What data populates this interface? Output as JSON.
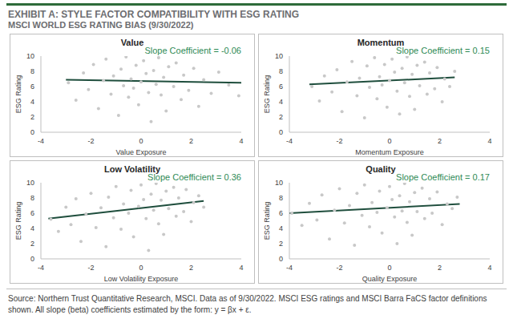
{
  "title": "EXHIBIT A: STYLE FACTOR COMPATIBILITY WITH ESG RATING",
  "subtitle": "MSCI WORLD ESG RATING BIAS (9/30/2022)",
  "source": "Source: Northern Trust Quantitative Research, MSCI. Data as of 9/30/2022. MSCI ESG ratings and MSCI Barra FaCS factor definitions shown. All slope (beta) coefficients estimated by the form: y = βx + ε.",
  "chart_data": [
    {
      "type": "scatter",
      "title": "Value",
      "annotation": "Slope Coefficient = -0.06",
      "x_label": "Value Exposure",
      "y_label": "ESG Rating",
      "xlim": [
        -4,
        4
      ],
      "xticks": [
        -4,
        -2,
        0,
        2,
        4
      ],
      "ylim": [
        0,
        10
      ],
      "yticks": [
        0,
        2,
        4,
        6,
        8,
        10
      ],
      "grid": false,
      "series": [
        {
          "type": "scatter",
          "color": "#c8c8c8",
          "x": [
            -2.9,
            -2.6,
            -2.3,
            -2.1,
            -1.9,
            -1.7,
            -1.5,
            -1.4,
            -1.2,
            -1.1,
            -0.9,
            -0.8,
            -0.7,
            -0.6,
            -0.5,
            -0.4,
            -0.3,
            -0.2,
            -0.1,
            0,
            0.1,
            0.2,
            0.3,
            0.4,
            0.5,
            0.6,
            0.7,
            0.8,
            0.9,
            1.0,
            1.1,
            1.3,
            1.4,
            1.6,
            1.7,
            1.9,
            2.1,
            2.3,
            2.5,
            2.8,
            3.1,
            3.5,
            3.9
          ],
          "values": [
            6.5,
            4.2,
            7.8,
            5.6,
            8.9,
            3.1,
            6.8,
            9.6,
            5.0,
            7.4,
            2.2,
            8.3,
            6.1,
            9.9,
            4.6,
            7.0,
            5.8,
            8.8,
            3.6,
            6.6,
            9.4,
            7.7,
            5.2,
            1.4,
            8.1,
            6.3,
            9.8,
            4.9,
            7.2,
            2.8,
            8.6,
            6.0,
            9.1,
            4.3,
            7.5,
            5.5,
            8.4,
            3.4,
            6.9,
            5.1,
            7.9,
            6.2,
            4.8
          ]
        },
        {
          "type": "line",
          "color": "#1f4e3d",
          "x": [
            -3,
            4
          ],
          "values": [
            6.9,
            6.5
          ]
        }
      ]
    },
    {
      "type": "scatter",
      "title": "Momentum",
      "annotation": "Slope Coefficient = 0.15",
      "x_label": "Momentum Exposure",
      "y_label": "ESG Rating",
      "xlim": [
        -4,
        4
      ],
      "xticks": [
        -4,
        -2,
        0,
        2,
        4
      ],
      "ylim": [
        0,
        10
      ],
      "yticks": [
        0,
        2,
        4,
        6,
        8,
        10
      ],
      "grid": false,
      "series": [
        {
          "type": "scatter",
          "color": "#c8c8c8",
          "x": [
            -3.1,
            -2.8,
            -2.6,
            -2.3,
            -2.1,
            -1.9,
            -1.7,
            -1.5,
            -1.3,
            -1.2,
            -1.0,
            -0.9,
            -0.8,
            -0.6,
            -0.5,
            -0.4,
            -0.3,
            -0.2,
            -0.1,
            0,
            0.1,
            0.2,
            0.3,
            0.4,
            0.5,
            0.6,
            0.7,
            0.8,
            0.9,
            1.0,
            1.1,
            1.2,
            1.4,
            1.5,
            1.6,
            1.8,
            1.9,
            2.1,
            2.2,
            2.4,
            2.6
          ],
          "values": [
            6.0,
            4.1,
            7.4,
            5.3,
            8.2,
            2.7,
            6.6,
            9.3,
            4.8,
            7.1,
            1.9,
            8.7,
            5.9,
            9.8,
            4.4,
            7.3,
            6.2,
            8.9,
            3.3,
            6.8,
            9.6,
            7.9,
            5.4,
            2.4,
            8.4,
            6.5,
            9.9,
            4.7,
            7.6,
            3.0,
            8.8,
            6.1,
            9.2,
            5.0,
            7.8,
            5.7,
            8.5,
            4.0,
            7.0,
            6.0,
            8.0
          ]
        },
        {
          "type": "line",
          "color": "#1f4e3d",
          "x": [
            -3.2,
            2.6
          ],
          "values": [
            6.3,
            7.2
          ]
        }
      ]
    },
    {
      "type": "scatter",
      "title": "Low Volatility",
      "annotation": "Slope Coefficient = 0.36",
      "x_label": "Low Volatility Exposure",
      "y_label": "ESG Rating",
      "xlim": [
        -4,
        4
      ],
      "xticks": [
        -4,
        -2,
        0,
        2,
        4
      ],
      "ylim": [
        0,
        10
      ],
      "yticks": [
        0,
        2,
        4,
        6,
        8,
        10
      ],
      "grid": false,
      "series": [
        {
          "type": "scatter",
          "color": "#c8c8c8",
          "x": [
            -3.6,
            -3.3,
            -3.0,
            -2.8,
            -2.6,
            -2.4,
            -2.2,
            -2.0,
            -1.8,
            -1.6,
            -1.4,
            -1.3,
            -1.1,
            -1.0,
            -0.8,
            -0.7,
            -0.5,
            -0.4,
            -0.3,
            -0.1,
            0,
            0.1,
            0.2,
            0.3,
            0.4,
            0.5,
            0.6,
            0.7,
            0.8,
            0.9,
            1.0,
            1.1,
            1.3,
            1.4,
            1.5,
            1.7,
            1.8,
            2.0,
            2.1,
            2.3,
            2.5
          ],
          "values": [
            5.2,
            3.6,
            6.8,
            4.5,
            7.9,
            2.3,
            5.9,
            8.6,
            4.1,
            6.7,
            1.6,
            8.1,
            5.4,
            9.5,
            3.9,
            7.2,
            6.0,
            9.0,
            2.9,
            6.9,
            9.7,
            7.8,
            5.3,
            1.1,
            8.5,
            6.4,
            9.9,
            4.6,
            7.7,
            3.2,
            8.9,
            6.6,
            9.4,
            5.6,
            8.0,
            6.2,
            9.1,
            4.9,
            7.4,
            8.3,
            6.8
          ]
        },
        {
          "type": "line",
          "color": "#1f4e3d",
          "x": [
            -3.7,
            2.5
          ],
          "values": [
            5.3,
            7.6
          ]
        }
      ]
    },
    {
      "type": "scatter",
      "title": "Quality",
      "annotation": "Slope Coefficient = 0.17",
      "x_label": "Quality Exposure",
      "y_label": "ESG Rating",
      "xlim": [
        -4,
        4
      ],
      "xticks": [
        -4,
        -2,
        0,
        2,
        4
      ],
      "ylim": [
        0,
        10
      ],
      "yticks": [
        0,
        2,
        4,
        6,
        8,
        10
      ],
      "grid": false,
      "series": [
        {
          "type": "scatter",
          "color": "#c8c8c8",
          "x": [
            -3.9,
            -3.5,
            -3.2,
            -2.9,
            -2.7,
            -2.4,
            -2.2,
            -2.0,
            -1.8,
            -1.6,
            -1.4,
            -1.3,
            -1.1,
            -1.0,
            -0.8,
            -0.7,
            -0.5,
            -0.4,
            -0.3,
            -0.1,
            0,
            0.1,
            0.2,
            0.3,
            0.4,
            0.5,
            0.6,
            0.7,
            0.8,
            0.9,
            1.0,
            1.1,
            1.3,
            1.4,
            1.6,
            1.7,
            1.9,
            2.1,
            2.3,
            2.5,
            2.7
          ],
          "values": [
            6.0,
            4.4,
            7.3,
            5.1,
            8.4,
            2.6,
            6.4,
            9.2,
            4.7,
            7.0,
            1.8,
            8.6,
            5.7,
            9.7,
            4.2,
            7.4,
            6.1,
            8.9,
            3.4,
            6.7,
            9.5,
            7.8,
            5.5,
            2.0,
            8.3,
            6.3,
            9.9,
            4.8,
            7.5,
            3.1,
            8.7,
            6.2,
            9.3,
            5.3,
            7.9,
            6.0,
            8.8,
            4.5,
            7.2,
            6.6,
            8.1
          ]
        },
        {
          "type": "line",
          "color": "#1f4e3d",
          "x": [
            -4,
            2.8
          ],
          "values": [
            6.0,
            7.2
          ]
        }
      ]
    }
  ]
}
